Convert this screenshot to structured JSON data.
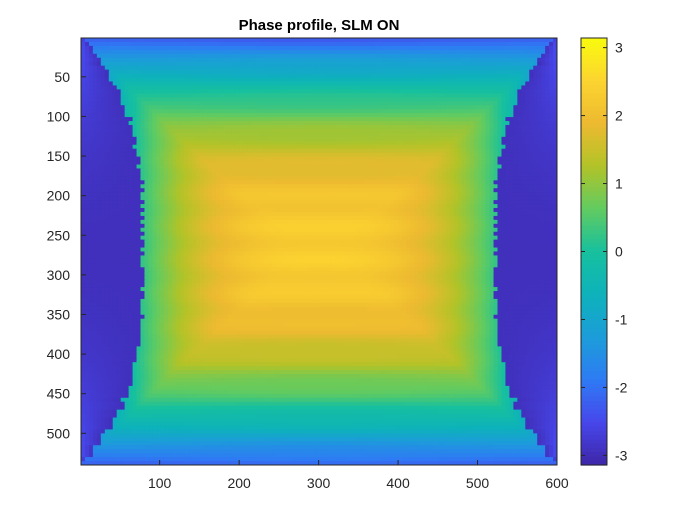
{
  "chart_data": {
    "type": "heatmap",
    "title": "Phase profile, SLM ON",
    "xlabel": "",
    "ylabel": "",
    "xlim": [
      1,
      600
    ],
    "ylim": [
      1,
      540
    ],
    "y_reversed": true,
    "x_ticks": [
      "100",
      "200",
      "300",
      "400",
      "500",
      "600"
    ],
    "y_ticks": [
      "50",
      "100",
      "150",
      "200",
      "250",
      "300",
      "350",
      "400",
      "450",
      "500"
    ],
    "colorbar": {
      "colormap": "parula",
      "clim": [
        -3.1416,
        3.1416
      ],
      "ticks": [
        "3",
        "2",
        "1",
        "0",
        "-1",
        "-2",
        "-3"
      ]
    },
    "description_values": {
      "center_phase": 2.2,
      "edge_phase": -1.8,
      "wrapped_side_phase": -2.9
    }
  }
}
